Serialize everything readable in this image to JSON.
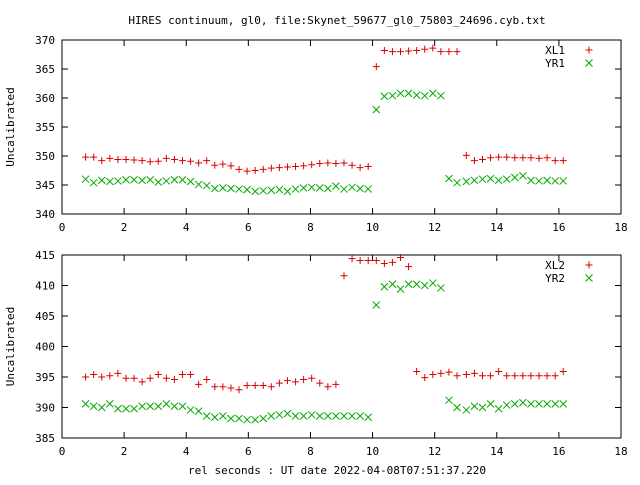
{
  "chart_data": {
    "title": "HIRES continuum, gl0, file:Skynet_59677_gl0_75803_24696.cyb.txt",
    "xlabel": "rel seconds : UT date 2022-04-08T07:51:37.220",
    "panels": [
      {
        "type": "scatter",
        "ylabel": "Uncalibrated",
        "xlim": [
          0,
          18
        ],
        "ylim": [
          340,
          370
        ],
        "xticks": [
          0,
          2,
          4,
          6,
          8,
          10,
          12,
          14,
          16,
          18
        ],
        "yticks": [
          340,
          345,
          350,
          355,
          360,
          365,
          370
        ],
        "legend_position": "top-right",
        "series": [
          {
            "name": "XL1",
            "marker": "plus",
            "color": "#dd0000",
            "x": [
              0.76,
              1.02,
              1.28,
              1.54,
              1.8,
              2.06,
              2.32,
              2.58,
              2.84,
              3.1,
              3.36,
              3.62,
              3.88,
              4.14,
              4.4,
              4.66,
              4.92,
              5.18,
              5.44,
              5.7,
              5.96,
              6.22,
              6.48,
              6.74,
              7.0,
              7.26,
              7.52,
              7.78,
              8.04,
              8.3,
              8.56,
              8.82,
              9.08,
              9.34,
              9.6,
              9.86,
              10.12,
              10.38,
              10.64,
              10.9,
              11.16,
              11.42,
              11.68,
              11.94,
              12.2,
              12.46,
              12.72,
              13.02,
              13.28,
              13.54,
              13.8,
              14.06,
              14.32,
              14.58,
              14.84,
              15.1,
              15.36,
              15.62,
              15.88,
              16.14
            ],
            "y": [
              349.8,
              349.8,
              349.2,
              349.6,
              349.4,
              349.4,
              349.3,
              349.2,
              349.0,
              349.1,
              349.6,
              349.4,
              349.2,
              349.1,
              348.8,
              349.2,
              348.4,
              348.6,
              348.3,
              347.7,
              347.4,
              347.5,
              347.7,
              347.9,
              348.0,
              348.1,
              348.2,
              348.3,
              348.5,
              348.7,
              348.8,
              348.7,
              348.8,
              348.4,
              348.0,
              348.2,
              365.4,
              368.2,
              368.0,
              368.0,
              368.1,
              368.2,
              368.4,
              368.6,
              368.0,
              368.0,
              368.0,
              350.1,
              349.2,
              349.4,
              349.7,
              349.8,
              349.8,
              349.7,
              349.7,
              349.7,
              349.6,
              349.7,
              349.2,
              349.2
            ]
          },
          {
            "name": "YR1",
            "marker": "cross",
            "color": "#00aa00",
            "x": [
              0.76,
              1.02,
              1.28,
              1.54,
              1.8,
              2.06,
              2.32,
              2.58,
              2.84,
              3.1,
              3.36,
              3.62,
              3.88,
              4.14,
              4.4,
              4.66,
              4.92,
              5.18,
              5.44,
              5.7,
              5.96,
              6.22,
              6.48,
              6.74,
              7.0,
              7.26,
              7.52,
              7.78,
              8.04,
              8.3,
              8.56,
              8.82,
              9.08,
              9.34,
              9.6,
              9.86,
              10.12,
              10.38,
              10.64,
              10.9,
              11.16,
              11.42,
              11.68,
              11.94,
              12.2,
              12.46,
              12.72,
              13.02,
              13.28,
              13.54,
              13.8,
              14.06,
              14.32,
              14.58,
              14.84,
              15.1,
              15.36,
              15.62,
              15.88,
              16.14
            ],
            "y": [
              346.0,
              345.4,
              345.8,
              345.6,
              345.7,
              345.9,
              345.9,
              345.8,
              345.9,
              345.5,
              345.7,
              345.9,
              345.9,
              345.6,
              345.1,
              344.9,
              344.4,
              344.5,
              344.4,
              344.3,
              344.2,
              343.9,
              344.0,
              344.1,
              344.2,
              343.9,
              344.3,
              344.5,
              344.6,
              344.5,
              344.4,
              344.8,
              344.3,
              344.6,
              344.4,
              344.3,
              358.0,
              360.3,
              360.4,
              360.8,
              360.8,
              360.5,
              360.4,
              360.8,
              360.4,
              346.1,
              345.4,
              345.6,
              345.8,
              346.0,
              346.1,
              345.8,
              346.0,
              346.3,
              346.6,
              345.8,
              345.7,
              345.8,
              345.7,
              345.7
            ],
            "_note_skip": ""
          }
        ]
      },
      {
        "type": "scatter",
        "ylabel": "Uncalibrated",
        "xlim": [
          0,
          18
        ],
        "ylim": [
          385,
          415
        ],
        "xticks": [
          0,
          2,
          4,
          6,
          8,
          10,
          12,
          14,
          16,
          18
        ],
        "yticks": [
          385,
          390,
          395,
          400,
          405,
          410,
          415
        ],
        "legend_position": "top-right",
        "series": [
          {
            "name": "XL2",
            "marker": "plus",
            "color": "#dd0000",
            "x": [
              0.76,
              1.02,
              1.28,
              1.54,
              1.8,
              2.06,
              2.32,
              2.58,
              2.84,
              3.1,
              3.36,
              3.62,
              3.88,
              4.14,
              4.4,
              4.66,
              4.92,
              5.18,
              5.44,
              5.7,
              5.96,
              6.22,
              6.48,
              6.74,
              7.0,
              7.26,
              7.52,
              7.78,
              8.04,
              8.3,
              8.56,
              8.82,
              9.08,
              9.34,
              9.6,
              9.86,
              10.12,
              10.38,
              10.64,
              10.9,
              11.16,
              11.42,
              11.68,
              11.94,
              12.2,
              12.46,
              12.72,
              13.02,
              13.28,
              13.54,
              13.8,
              14.06,
              14.32,
              14.58,
              14.84,
              15.1,
              15.36,
              15.62,
              15.88,
              16.14
            ],
            "y": [
              395.0,
              395.4,
              395.0,
              395.2,
              395.6,
              394.8,
              394.8,
              394.2,
              394.8,
              395.4,
              394.8,
              394.6,
              395.4,
              395.4,
              393.8,
              394.6,
              393.4,
              393.4,
              393.2,
              392.9,
              393.6,
              393.6,
              393.6,
              393.4,
              394.0,
              394.4,
              394.2,
              394.6,
              394.8,
              394.0,
              393.4,
              393.8,
              411.6,
              414.4,
              414.1,
              414.1,
              414.1,
              413.6,
              413.8,
              414.6,
              413.1,
              395.9,
              394.9,
              395.4,
              395.6,
              395.8,
              395.2,
              395.4,
              395.6,
              395.2,
              395.2,
              395.9,
              395.2,
              395.2,
              395.2,
              395.2,
              395.2,
              395.2,
              395.2,
              395.9
            ]
          },
          {
            "name": "YR2",
            "marker": "cross",
            "color": "#00aa00",
            "x": [
              0.76,
              1.02,
              1.28,
              1.54,
              1.8,
              2.06,
              2.32,
              2.58,
              2.84,
              3.1,
              3.36,
              3.62,
              3.88,
              4.14,
              4.4,
              4.66,
              4.92,
              5.18,
              5.44,
              5.7,
              5.96,
              6.22,
              6.48,
              6.74,
              7.0,
              7.26,
              7.52,
              7.78,
              8.04,
              8.3,
              8.56,
              8.82,
              9.08,
              9.34,
              9.6,
              9.86,
              10.12,
              10.38,
              10.64,
              10.9,
              11.16,
              11.42,
              11.68,
              11.94,
              12.2,
              12.46,
              12.72,
              13.02,
              13.28,
              13.54,
              13.8,
              14.06,
              14.32,
              14.58,
              14.84,
              15.1,
              15.36,
              15.62,
              15.88,
              16.14
            ],
            "y": [
              390.6,
              390.2,
              390.0,
              390.6,
              389.8,
              389.8,
              389.8,
              390.2,
              390.2,
              390.2,
              390.6,
              390.2,
              390.2,
              389.6,
              389.4,
              388.6,
              388.4,
              388.6,
              388.2,
              388.2,
              388.0,
              388.0,
              388.2,
              388.6,
              388.8,
              389.0,
              388.6,
              388.6,
              388.8,
              388.6,
              388.6,
              388.6,
              388.6,
              388.6,
              388.6,
              388.4,
              406.8,
              409.8,
              410.2,
              409.4,
              410.2,
              410.2,
              410.0,
              410.4,
              409.6,
              391.2,
              390.0,
              389.6,
              390.2,
              390.0,
              390.6,
              389.8,
              390.4,
              390.6,
              390.8,
              390.6,
              390.6,
              390.6,
              390.6,
              390.6
            ]
          }
        ]
      }
    ]
  }
}
